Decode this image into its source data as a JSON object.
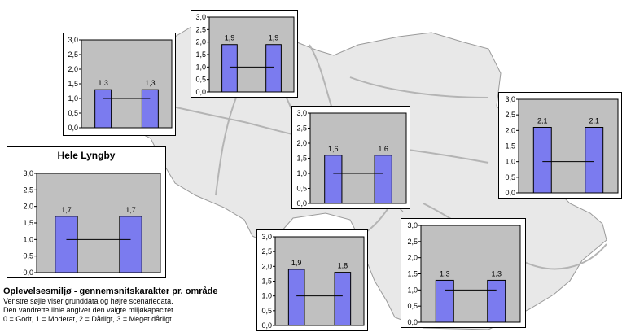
{
  "colors": {
    "bar": "#7b7bef",
    "plot_bg": "#c0c0c0",
    "map_fill": "#e8e8e8",
    "road": "#b4b4b4"
  },
  "legend": {
    "title": "Oplevelsesmiljø - gennemsnitskarakter pr. område",
    "line1": "Venstre søjle viser grunddata og højre scenariedata.",
    "line2": "Den vandrette linie angiver den valgte miljøkapacitet.",
    "line3": "0 = Godt, 1 = Moderat, 2 = Dårligt, 3 = Meget dårligt"
  },
  "chart_data": [
    {
      "type": "bar",
      "title": "Hele Lyngby",
      "ylim": [
        0,
        3
      ],
      "yticks": [
        "0,0",
        "0,5",
        "1,0",
        "1,5",
        "2,0",
        "2,5",
        "3,0"
      ],
      "values": [
        1.7,
        1.7
      ],
      "labels": [
        "1,7",
        "1,7"
      ],
      "capacity": 1.0
    },
    {
      "type": "bar",
      "title": "",
      "ylim": [
        0,
        3
      ],
      "yticks": [
        "0,0",
        "0,5",
        "1,0",
        "1,5",
        "2,0",
        "2,5",
        "3,0"
      ],
      "values": [
        1.3,
        1.3
      ],
      "labels": [
        "1,3",
        "1,3"
      ],
      "capacity": 1.0
    },
    {
      "type": "bar",
      "title": "",
      "ylim": [
        0,
        3
      ],
      "yticks": [
        "0,0",
        "0,5",
        "1,0",
        "1,5",
        "2,0",
        "2,5",
        "3,0"
      ],
      "values": [
        1.9,
        1.9
      ],
      "labels": [
        "1,9",
        "1,9"
      ],
      "capacity": 1.0
    },
    {
      "type": "bar",
      "title": "",
      "ylim": [
        0,
        3
      ],
      "yticks": [
        "0,0",
        "0,5",
        "1,0",
        "1,5",
        "2,0",
        "2,5",
        "3,0"
      ],
      "values": [
        1.6,
        1.6
      ],
      "labels": [
        "1,6",
        "1,6"
      ],
      "capacity": 1.0
    },
    {
      "type": "bar",
      "title": "",
      "ylim": [
        0,
        3
      ],
      "yticks": [
        "0,0",
        "0,5",
        "1,0",
        "1,5",
        "2,0",
        "2,5",
        "3,0"
      ],
      "values": [
        2.1,
        2.1
      ],
      "labels": [
        "2,1",
        "2,1"
      ],
      "capacity": 1.0
    },
    {
      "type": "bar",
      "title": "",
      "ylim": [
        0,
        3
      ],
      "yticks": [
        "0,0",
        "0,5",
        "1,0",
        "1,5",
        "2,0",
        "2,5",
        "3,0"
      ],
      "values": [
        1.9,
        1.8
      ],
      "labels": [
        "1,9",
        "1,8"
      ],
      "capacity": 1.0
    },
    {
      "type": "bar",
      "title": "",
      "ylim": [
        0,
        3
      ],
      "yticks": [
        "0,0",
        "0,5",
        "1,0",
        "1,5",
        "2,0",
        "2,5",
        "3,0"
      ],
      "values": [
        1.3,
        1.3
      ],
      "labels": [
        "1,3",
        "1,3"
      ],
      "capacity": 1.0
    }
  ]
}
